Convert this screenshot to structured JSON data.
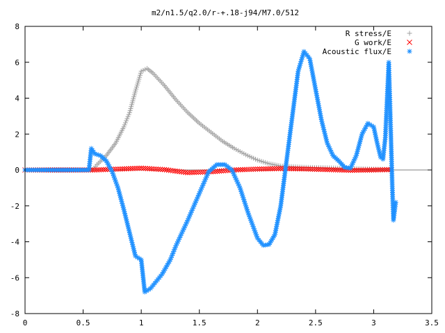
{
  "chart_data": {
    "type": "scatter",
    "title": "m2/n1.5/q2.0/r-+.18-j94/M7.0/512",
    "xlabel": "",
    "ylabel": "",
    "xlim": [
      0,
      3.5
    ],
    "ylim": [
      -8,
      8
    ],
    "x_ticks": [
      "0",
      "0.5",
      "1",
      "1.5",
      "2",
      "2.5",
      "3",
      "3.5"
    ],
    "y_ticks": [
      "8",
      "6",
      "4",
      "2",
      "0",
      "-2",
      "-4",
      "-6",
      "-8"
    ],
    "legend_position": "top-right",
    "series": [
      {
        "name": "R stress/E",
        "color": "#a0a0a0",
        "marker": "plus",
        "points": [
          [
            0.0,
            0.0
          ],
          [
            0.3,
            0.0
          ],
          [
            0.58,
            0.0
          ],
          [
            0.62,
            0.3
          ],
          [
            0.7,
            0.8
          ],
          [
            0.78,
            1.5
          ],
          [
            0.85,
            2.4
          ],
          [
            0.9,
            3.2
          ],
          [
            0.95,
            4.4
          ],
          [
            1.0,
            5.5
          ],
          [
            1.05,
            5.65
          ],
          [
            1.1,
            5.4
          ],
          [
            1.2,
            4.7
          ],
          [
            1.3,
            3.9
          ],
          [
            1.4,
            3.2
          ],
          [
            1.5,
            2.6
          ],
          [
            1.6,
            2.1
          ],
          [
            1.7,
            1.6
          ],
          [
            1.8,
            1.2
          ],
          [
            1.9,
            0.85
          ],
          [
            2.0,
            0.55
          ],
          [
            2.1,
            0.35
          ],
          [
            2.2,
            0.22
          ],
          [
            2.4,
            0.15
          ],
          [
            2.6,
            0.12
          ],
          [
            2.8,
            0.08
          ],
          [
            3.0,
            0.05
          ],
          [
            3.15,
            0.03
          ]
        ]
      },
      {
        "name": "G work/E",
        "color": "#ff0000",
        "marker": "cross",
        "points": [
          [
            0.0,
            0.0
          ],
          [
            0.6,
            0.0
          ],
          [
            0.8,
            0.05
          ],
          [
            1.0,
            0.1
          ],
          [
            1.2,
            0.02
          ],
          [
            1.4,
            -0.15
          ],
          [
            1.6,
            -0.1
          ],
          [
            1.8,
            0.0
          ],
          [
            2.0,
            0.05
          ],
          [
            2.2,
            0.08
          ],
          [
            2.4,
            0.06
          ],
          [
            2.6,
            0.02
          ],
          [
            2.8,
            -0.02
          ],
          [
            3.0,
            0.0
          ],
          [
            3.15,
            0.02
          ]
        ]
      },
      {
        "name": "Acoustic flux/E",
        "color": "#1e90ff",
        "marker": "star",
        "points": [
          [
            0.0,
            0.0
          ],
          [
            0.3,
            0.0
          ],
          [
            0.55,
            0.0
          ],
          [
            0.57,
            1.2
          ],
          [
            0.6,
            0.9
          ],
          [
            0.65,
            0.8
          ],
          [
            0.7,
            0.5
          ],
          [
            0.75,
            -0.1
          ],
          [
            0.8,
            -1.0
          ],
          [
            0.85,
            -2.2
          ],
          [
            0.9,
            -3.5
          ],
          [
            0.95,
            -4.8
          ],
          [
            1.0,
            -5.0
          ],
          [
            1.03,
            -6.8
          ],
          [
            1.08,
            -6.6
          ],
          [
            1.13,
            -6.2
          ],
          [
            1.18,
            -5.8
          ],
          [
            1.25,
            -5.0
          ],
          [
            1.3,
            -4.2
          ],
          [
            1.4,
            -2.8
          ],
          [
            1.5,
            -1.3
          ],
          [
            1.58,
            -0.1
          ],
          [
            1.65,
            0.3
          ],
          [
            1.72,
            0.3
          ],
          [
            1.78,
            0.0
          ],
          [
            1.85,
            -1.0
          ],
          [
            1.92,
            -2.4
          ],
          [
            2.0,
            -3.8
          ],
          [
            2.05,
            -4.2
          ],
          [
            2.1,
            -4.15
          ],
          [
            2.15,
            -3.6
          ],
          [
            2.2,
            -2.0
          ],
          [
            2.25,
            0.5
          ],
          [
            2.3,
            3.0
          ],
          [
            2.35,
            5.5
          ],
          [
            2.4,
            6.6
          ],
          [
            2.45,
            6.2
          ],
          [
            2.5,
            4.5
          ],
          [
            2.55,
            2.8
          ],
          [
            2.6,
            1.5
          ],
          [
            2.65,
            0.8
          ],
          [
            2.7,
            0.5
          ],
          [
            2.75,
            0.15
          ],
          [
            2.8,
            0.1
          ],
          [
            2.85,
            0.8
          ],
          [
            2.9,
            2.0
          ],
          [
            2.95,
            2.6
          ],
          [
            3.0,
            2.4
          ],
          [
            3.03,
            1.5
          ],
          [
            3.06,
            0.7
          ],
          [
            3.08,
            0.6
          ],
          [
            3.1,
            1.8
          ],
          [
            3.12,
            4.6
          ],
          [
            3.13,
            6.0
          ],
          [
            3.15,
            1.5
          ],
          [
            3.16,
            -0.9
          ],
          [
            3.17,
            -2.8
          ],
          [
            3.18,
            -2.3
          ],
          [
            3.19,
            -1.8
          ]
        ]
      }
    ]
  }
}
